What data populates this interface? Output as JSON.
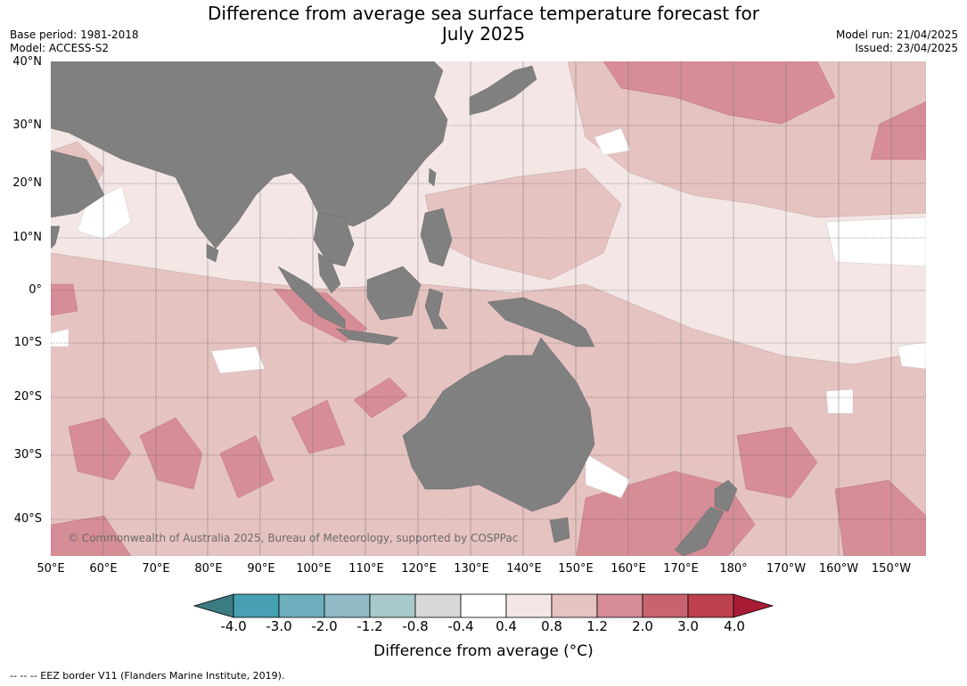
{
  "title_line1": "Difference from average sea surface temperature forecast for",
  "title_line2": "July 2025",
  "meta_left": [
    "Base period: 1981-2018",
    "Model: ACCESS-S2"
  ],
  "meta_right": [
    "Model run: 21/04/2025",
    "Issued: 23/04/2025"
  ],
  "latitude_labels": [
    "40°N",
    "30°N",
    "20°N",
    "10°N",
    "0°",
    "10°S",
    "20°S",
    "30°S",
    "40°S"
  ],
  "longitude_labels": [
    "50°E",
    "60°E",
    "70°E",
    "80°E",
    "90°E",
    "100°E",
    "110°E",
    "120°E",
    "130°E",
    "140°E",
    "150°E",
    "160°E",
    "170°E",
    "180°",
    "170°W",
    "160°W",
    "150°W"
  ],
  "copyright": "© Commonwealth of Australia 2025, Bureau of Meteorology, supported by COSPPac",
  "colorbar": {
    "ticks": [
      "-4.0",
      "-3.0",
      "-2.0",
      "-1.2",
      "-0.8",
      "-0.4",
      "0.4",
      "0.8",
      "1.2",
      "2.0",
      "3.0",
      "4.0"
    ],
    "colors": [
      "#3b7b82",
      "#46a0b2",
      "#6eafbe",
      "#8fbac6",
      "#a9c8cc",
      "#d8d8d8",
      "#ffffff",
      "#f3e6e5",
      "#e5c3c1",
      "#d78d96",
      "#c9646f",
      "#be4150",
      "#a71c33"
    ],
    "label": "Difference from average (°C)"
  },
  "footnote": "--  --  -- EEZ border V11 (Flanders Marine Institute, 2019).",
  "colors": {
    "land": "#808080",
    "anom_0_4_0_8": "#f3e6e5",
    "anom_0_8_1_2": "#e5c3c1",
    "anom_1_2_2_0": "#d78d96",
    "anom_2_0_3_0": "#c9646f",
    "near_zero": "#ffffff"
  }
}
